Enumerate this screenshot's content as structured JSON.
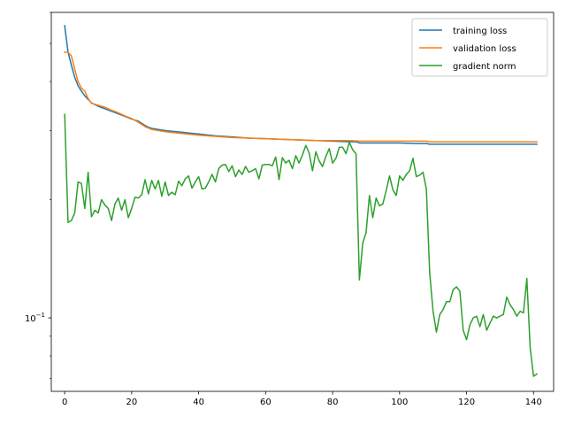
{
  "chart_data": {
    "type": "line",
    "title": "",
    "xlabel": "",
    "ylabel": "",
    "xlim": [
      -4,
      146
    ],
    "ylim": [
      0.065,
      0.6
    ],
    "yscale": "log",
    "grid": false,
    "legend_position": "top-right",
    "x_ticks": [
      0,
      20,
      40,
      60,
      80,
      100,
      120,
      140
    ],
    "x_tick_labels": [
      "0",
      "20",
      "40",
      "60",
      "80",
      "100",
      "120",
      "140"
    ],
    "y_major_ticks": [
      0.1
    ],
    "y_major_tick_labels": [
      "10^-1"
    ],
    "y_minor_ticks": [
      0.07,
      0.08,
      0.09,
      0.2,
      0.3,
      0.4,
      0.5,
      0.6
    ],
    "series": [
      {
        "name": "training loss",
        "color": "#1f77b4",
        "x": [
          0,
          1,
          2,
          3,
          4,
          5,
          6,
          7,
          8,
          10,
          12,
          14,
          16,
          18,
          20,
          22,
          24,
          25,
          26,
          28,
          30,
          35,
          40,
          45,
          50,
          55,
          60,
          65,
          70,
          75,
          80,
          85,
          87,
          88,
          90,
          95,
          100,
          105,
          108,
          109,
          110,
          115,
          120,
          125,
          130,
          135,
          140,
          141
        ],
        "y": [
          0.555,
          0.475,
          0.44,
          0.41,
          0.39,
          0.378,
          0.368,
          0.36,
          0.353,
          0.346,
          0.341,
          0.336,
          0.331,
          0.326,
          0.321,
          0.317,
          0.309,
          0.306,
          0.304,
          0.302,
          0.3,
          0.297,
          0.294,
          0.291,
          0.289,
          0.287,
          0.286,
          0.285,
          0.284,
          0.283,
          0.282,
          0.281,
          0.281,
          0.279,
          0.279,
          0.279,
          0.279,
          0.278,
          0.278,
          0.277,
          0.277,
          0.277,
          0.277,
          0.277,
          0.277,
          0.277,
          0.277,
          0.277
        ]
      },
      {
        "name": "validation loss",
        "color": "#ff7f0e",
        "x": [
          0,
          1,
          2,
          3,
          4,
          5,
          6,
          7,
          8,
          10,
          12,
          14,
          16,
          18,
          20,
          22,
          24,
          26,
          28,
          30,
          35,
          40,
          45,
          50,
          55,
          60,
          65,
          70,
          75,
          80,
          85,
          88,
          90,
          95,
          100,
          105,
          108,
          109,
          110,
          115,
          120,
          125,
          130,
          135,
          140,
          141
        ],
        "y": [
          0.475,
          0.475,
          0.465,
          0.43,
          0.4,
          0.385,
          0.378,
          0.362,
          0.352,
          0.348,
          0.344,
          0.338,
          0.333,
          0.327,
          0.322,
          0.315,
          0.307,
          0.302,
          0.3,
          0.298,
          0.295,
          0.292,
          0.29,
          0.288,
          0.287,
          0.286,
          0.285,
          0.284,
          0.283,
          0.283,
          0.283,
          0.282,
          0.282,
          0.282,
          0.282,
          0.282,
          0.282,
          0.281,
          0.281,
          0.281,
          0.281,
          0.281,
          0.281,
          0.281,
          0.281,
          0.281
        ]
      },
      {
        "name": "gradient norm",
        "color": "#2ca02c",
        "x": [
          0,
          1,
          2,
          3,
          4,
          5,
          6,
          7,
          8,
          9,
          10,
          11,
          12,
          13,
          14,
          15,
          16,
          17,
          18,
          19,
          20,
          21,
          22,
          23,
          24,
          25,
          26,
          27,
          28,
          29,
          30,
          31,
          32,
          33,
          34,
          35,
          36,
          37,
          38,
          39,
          40,
          41,
          42,
          43,
          44,
          45,
          46,
          47,
          48,
          49,
          50,
          51,
          52,
          53,
          54,
          55,
          56,
          57,
          58,
          59,
          60,
          61,
          62,
          63,
          64,
          65,
          66,
          67,
          68,
          69,
          70,
          71,
          72,
          73,
          74,
          75,
          76,
          77,
          78,
          79,
          80,
          81,
          82,
          83,
          84,
          85,
          86,
          87,
          88,
          89,
          90,
          91,
          92,
          93,
          94,
          95,
          96,
          97,
          98,
          99,
          100,
          101,
          102,
          103,
          104,
          105,
          106,
          107,
          108,
          109,
          110,
          111,
          112,
          113,
          114,
          115,
          116,
          117,
          118,
          119,
          120,
          121,
          122,
          123,
          124,
          125,
          126,
          127,
          128,
          129,
          130,
          131,
          132,
          133,
          134,
          135,
          136,
          137,
          138,
          139,
          140,
          141
        ],
        "y": [
          0.33,
          0.175,
          0.177,
          0.185,
          0.222,
          0.22,
          0.19,
          0.235,
          0.181,
          0.188,
          0.185,
          0.2,
          0.194,
          0.19,
          0.177,
          0.195,
          0.202,
          0.188,
          0.2,
          0.18,
          0.19,
          0.203,
          0.202,
          0.206,
          0.225,
          0.207,
          0.224,
          0.213,
          0.224,
          0.204,
          0.222,
          0.205,
          0.209,
          0.206,
          0.223,
          0.217,
          0.226,
          0.23,
          0.214,
          0.222,
          0.229,
          0.213,
          0.214,
          0.222,
          0.232,
          0.222,
          0.24,
          0.245,
          0.246,
          0.236,
          0.244,
          0.229,
          0.238,
          0.232,
          0.243,
          0.235,
          0.237,
          0.24,
          0.226,
          0.245,
          0.246,
          0.246,
          0.244,
          0.257,
          0.225,
          0.256,
          0.248,
          0.252,
          0.24,
          0.259,
          0.248,
          0.26,
          0.275,
          0.263,
          0.237,
          0.265,
          0.251,
          0.243,
          0.258,
          0.27,
          0.248,
          0.255,
          0.272,
          0.272,
          0.262,
          0.28,
          0.268,
          0.262,
          0.125,
          0.155,
          0.165,
          0.205,
          0.18,
          0.202,
          0.193,
          0.195,
          0.211,
          0.23,
          0.212,
          0.205,
          0.23,
          0.224,
          0.232,
          0.237,
          0.255,
          0.229,
          0.231,
          0.235,
          0.213,
          0.13,
          0.104,
          0.092,
          0.102,
          0.105,
          0.11,
          0.11,
          0.118,
          0.12,
          0.117,
          0.093,
          0.088,
          0.096,
          0.1,
          0.101,
          0.095,
          0.102,
          0.093,
          0.097,
          0.101,
          0.1,
          0.101,
          0.102,
          0.113,
          0.108,
          0.105,
          0.101,
          0.104,
          0.103,
          0.126,
          0.084,
          0.071,
          0.072
        ]
      }
    ]
  }
}
